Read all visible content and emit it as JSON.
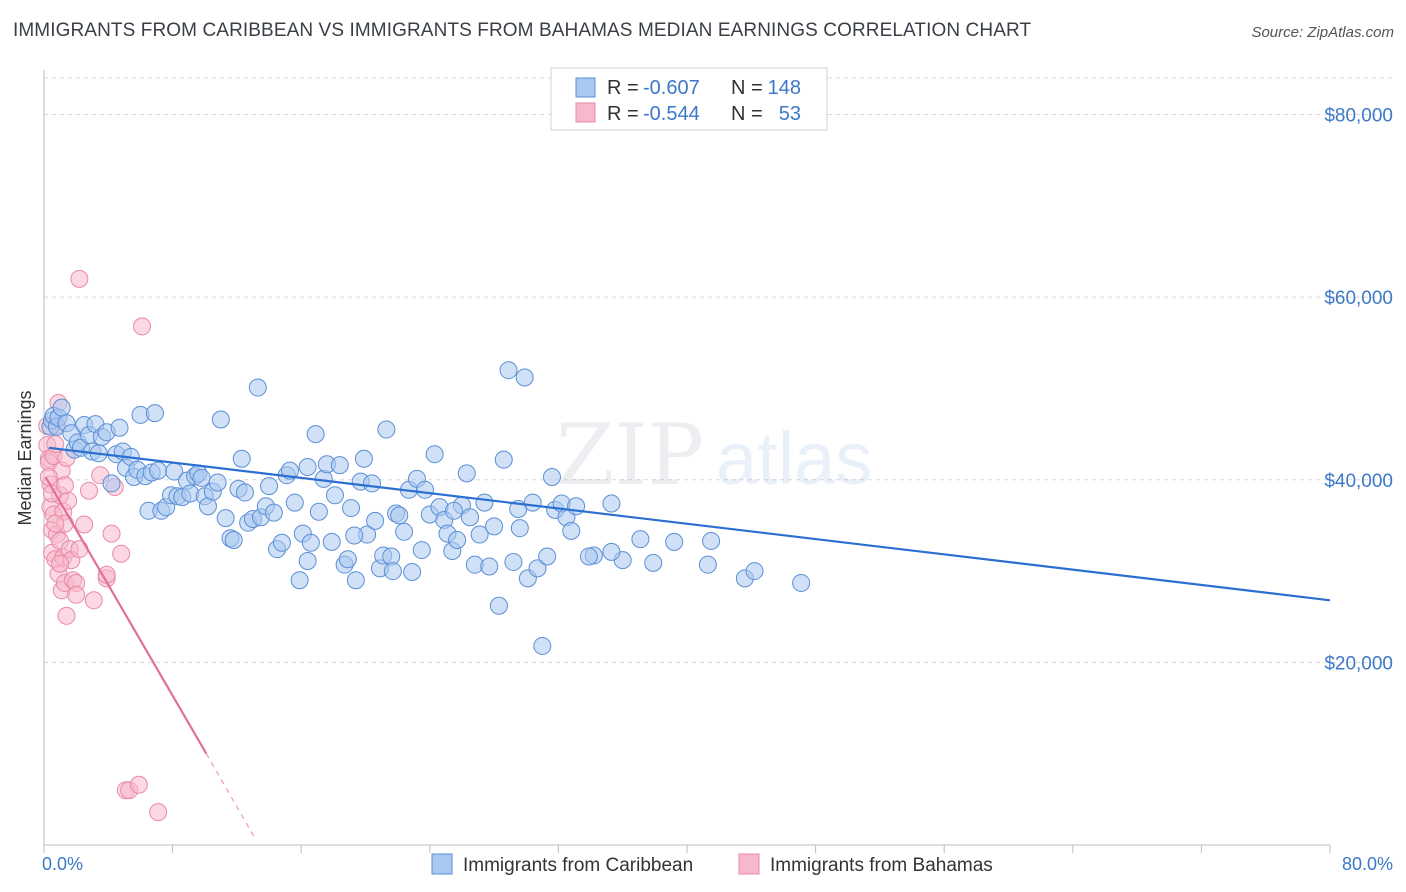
{
  "title": "IMMIGRANTS FROM CARIBBEAN VS IMMIGRANTS FROM BAHAMAS MEDIAN EARNINGS CORRELATION CHART",
  "source": "Source: ZipAtlas.com",
  "watermark": {
    "part1": "ZIP",
    "part2": "atlas"
  },
  "colors": {
    "caribbean_fill": "#a9c8f0",
    "caribbean_stroke": "#5b8fd6",
    "caribbean_line": "#2b6fd0",
    "bahamas_fill": "#f7b8cb",
    "bahamas_stroke": "#e88aa8",
    "bahamas_line": "#e0709a",
    "accent_text": "#3c78c8",
    "grid": "#d8d8d8"
  },
  "legend": {
    "rows": [
      {
        "r_label": "R =",
        "r_value": "-0.607",
        "n_label": "N =",
        "n_value": "148"
      },
      {
        "r_label": "R =",
        "r_value": "-0.544",
        "n_label": "N =",
        "n_value": "53"
      }
    ]
  },
  "chart_data": {
    "type": "scatter",
    "title": "IMMIGRANTS FROM CARIBBEAN VS IMMIGRANTS FROM BAHAMAS MEDIAN EARNINGS CORRELATION CHART",
    "xlabel": "",
    "ylabel": "Median Earnings",
    "xlim": [
      0,
      80
    ],
    "ylim": [
      0,
      84000
    ],
    "x_tick_labels": [
      "0.0%",
      "80.0%"
    ],
    "y_ticks": [
      20000,
      40000,
      60000,
      80000
    ],
    "y_tick_labels": [
      "$20,000",
      "$40,000",
      "$60,000",
      "$80,000"
    ],
    "grid": true,
    "legend_position": "top-center",
    "series": [
      {
        "name": "Immigrants from Caribbean",
        "r": -0.607,
        "n": 148,
        "trend": {
          "x0": 0.3,
          "y0": 43500,
          "x1": 80,
          "y1": 26800
        },
        "points": [
          [
            0.4,
            45800
          ],
          [
            0.5,
            46500
          ],
          [
            0.6,
            47000
          ],
          [
            0.8,
            45800
          ],
          [
            0.9,
            46800
          ],
          [
            1.1,
            47900
          ],
          [
            1.4,
            46200
          ],
          [
            1.7,
            45100
          ],
          [
            1.9,
            43300
          ],
          [
            2.1,
            44100
          ],
          [
            2.3,
            43500
          ],
          [
            2.5,
            46000
          ],
          [
            2.8,
            44900
          ],
          [
            3.0,
            43100
          ],
          [
            3.2,
            46100
          ],
          [
            3.4,
            42900
          ],
          [
            3.6,
            44700
          ],
          [
            3.9,
            45200
          ],
          [
            4.2,
            39600
          ],
          [
            4.5,
            42800
          ],
          [
            4.7,
            45700
          ],
          [
            4.9,
            43100
          ],
          [
            5.1,
            41300
          ],
          [
            5.4,
            42500
          ],
          [
            5.6,
            40300
          ],
          [
            5.8,
            41100
          ],
          [
            6.0,
            47100
          ],
          [
            6.3,
            40400
          ],
          [
            6.5,
            36600
          ],
          [
            6.7,
            40800
          ],
          [
            6.9,
            47300
          ],
          [
            7.1,
            41000
          ],
          [
            7.3,
            36600
          ],
          [
            7.6,
            37000
          ],
          [
            7.9,
            38300
          ],
          [
            8.1,
            40900
          ],
          [
            8.3,
            38200
          ],
          [
            8.6,
            38100
          ],
          [
            8.9,
            39900
          ],
          [
            9.1,
            38500
          ],
          [
            9.4,
            40400
          ],
          [
            9.6,
            40700
          ],
          [
            9.8,
            40200
          ],
          [
            10.0,
            38200
          ],
          [
            10.2,
            37100
          ],
          [
            10.5,
            38700
          ],
          [
            10.8,
            39700
          ],
          [
            11.0,
            46600
          ],
          [
            11.3,
            35800
          ],
          [
            11.6,
            33600
          ],
          [
            11.8,
            33400
          ],
          [
            12.1,
            39000
          ],
          [
            12.3,
            42300
          ],
          [
            12.5,
            38600
          ],
          [
            12.7,
            35300
          ],
          [
            13.0,
            35700
          ],
          [
            13.3,
            50100
          ],
          [
            13.5,
            35900
          ],
          [
            13.8,
            37100
          ],
          [
            14.0,
            39300
          ],
          [
            14.3,
            36400
          ],
          [
            14.5,
            32400
          ],
          [
            14.8,
            33100
          ],
          [
            15.1,
            40500
          ],
          [
            15.3,
            41000
          ],
          [
            15.6,
            37500
          ],
          [
            15.9,
            29000
          ],
          [
            16.1,
            34100
          ],
          [
            16.4,
            41400
          ],
          [
            16.6,
            33100
          ],
          [
            16.9,
            45000
          ],
          [
            17.1,
            36500
          ],
          [
            17.4,
            40100
          ],
          [
            17.6,
            41700
          ],
          [
            17.9,
            33200
          ],
          [
            18.1,
            38300
          ],
          [
            18.4,
            41600
          ],
          [
            18.7,
            30700
          ],
          [
            18.9,
            31300
          ],
          [
            19.1,
            36900
          ],
          [
            19.4,
            29000
          ],
          [
            19.7,
            39800
          ],
          [
            19.9,
            42300
          ],
          [
            20.1,
            34000
          ],
          [
            20.4,
            39600
          ],
          [
            20.6,
            35500
          ],
          [
            20.9,
            30300
          ],
          [
            21.1,
            31700
          ],
          [
            21.3,
            45500
          ],
          [
            21.6,
            31600
          ],
          [
            21.9,
            36300
          ],
          [
            22.1,
            36100
          ],
          [
            22.4,
            34300
          ],
          [
            22.7,
            38900
          ],
          [
            22.9,
            29900
          ],
          [
            23.2,
            40100
          ],
          [
            23.5,
            32300
          ],
          [
            23.7,
            38900
          ],
          [
            24.0,
            36200
          ],
          [
            24.3,
            42800
          ],
          [
            24.6,
            37000
          ],
          [
            24.9,
            35600
          ],
          [
            25.1,
            34100
          ],
          [
            25.4,
            32200
          ],
          [
            25.7,
            33400
          ],
          [
            26.0,
            37200
          ],
          [
            26.3,
            40700
          ],
          [
            26.5,
            35900
          ],
          [
            26.8,
            30700
          ],
          [
            27.1,
            34000
          ],
          [
            27.4,
            37500
          ],
          [
            27.7,
            30500
          ],
          [
            28.0,
            34900
          ],
          [
            28.3,
            26200
          ],
          [
            28.6,
            42200
          ],
          [
            28.9,
            52000
          ],
          [
            29.2,
            31000
          ],
          [
            29.5,
            36800
          ],
          [
            29.9,
            51200
          ],
          [
            30.1,
            29200
          ],
          [
            30.4,
            37500
          ],
          [
            30.7,
            30300
          ],
          [
            31.0,
            21800
          ],
          [
            31.3,
            31600
          ],
          [
            31.6,
            40300
          ],
          [
            31.8,
            36700
          ],
          [
            32.2,
            37400
          ],
          [
            32.5,
            35900
          ],
          [
            32.8,
            34400
          ],
          [
            33.1,
            37100
          ],
          [
            34.2,
            31700
          ],
          [
            35.3,
            37400
          ],
          [
            36.0,
            31200
          ],
          [
            37.1,
            33500
          ],
          [
            37.9,
            30900
          ],
          [
            39.2,
            33200
          ],
          [
            41.3,
            30700
          ],
          [
            43.6,
            29200
          ],
          [
            44.2,
            30000
          ],
          [
            47.1,
            28700
          ],
          [
            16.4,
            31100
          ],
          [
            19.3,
            33900
          ],
          [
            21.7,
            30000
          ],
          [
            25.5,
            36600
          ],
          [
            29.6,
            34700
          ],
          [
            33.9,
            31600
          ],
          [
            35.3,
            32100
          ],
          [
            41.5,
            33300
          ]
        ]
      },
      {
        "name": "Immigrants from Bahamas",
        "r": -0.544,
        "n": 53,
        "trend": {
          "x0": 0.1,
          "y0": 40300,
          "x1": 10.1,
          "y1": 10000
        },
        "trend_dashed": {
          "x0": 10.1,
          "y0": 10000,
          "x1": 13.2,
          "y1": 500
        },
        "points": [
          [
            0.2,
            45900
          ],
          [
            0.2,
            43800
          ],
          [
            0.3,
            42300
          ],
          [
            0.3,
            41900
          ],
          [
            0.4,
            39500
          ],
          [
            0.4,
            37000
          ],
          [
            0.5,
            34500
          ],
          [
            0.5,
            32000
          ],
          [
            0.6,
            42600
          ],
          [
            0.6,
            36200
          ],
          [
            0.7,
            43900
          ],
          [
            0.7,
            31300
          ],
          [
            0.8,
            46000
          ],
          [
            0.8,
            34000
          ],
          [
            0.9,
            48400
          ],
          [
            0.9,
            29700
          ],
          [
            1.0,
            38300
          ],
          [
            1.0,
            33300
          ],
          [
            1.1,
            41000
          ],
          [
            1.1,
            27900
          ],
          [
            1.2,
            36500
          ],
          [
            1.2,
            31500
          ],
          [
            1.3,
            35200
          ],
          [
            1.3,
            28700
          ],
          [
            1.4,
            42400
          ],
          [
            1.4,
            25100
          ],
          [
            1.5,
            37700
          ],
          [
            1.6,
            32400
          ],
          [
            1.7,
            31200
          ],
          [
            1.8,
            29000
          ],
          [
            2.0,
            28700
          ],
          [
            2.2,
            32400
          ],
          [
            2.5,
            35100
          ],
          [
            2.8,
            38800
          ],
          [
            3.1,
            26800
          ],
          [
            3.5,
            40500
          ],
          [
            3.9,
            29200
          ],
          [
            4.2,
            34100
          ],
          [
            4.4,
            39200
          ],
          [
            4.8,
            31900
          ],
          [
            5.1,
            6000
          ],
          [
            5.3,
            6000
          ],
          [
            5.9,
            6600
          ],
          [
            6.1,
            56800
          ],
          [
            7.1,
            3600
          ],
          [
            0.3,
            40300
          ],
          [
            0.5,
            38500
          ],
          [
            0.7,
            35200
          ],
          [
            1.0,
            30800
          ],
          [
            1.3,
            39400
          ],
          [
            2.2,
            62000
          ],
          [
            3.9,
            29600
          ],
          [
            2.0,
            27400
          ]
        ]
      }
    ]
  }
}
